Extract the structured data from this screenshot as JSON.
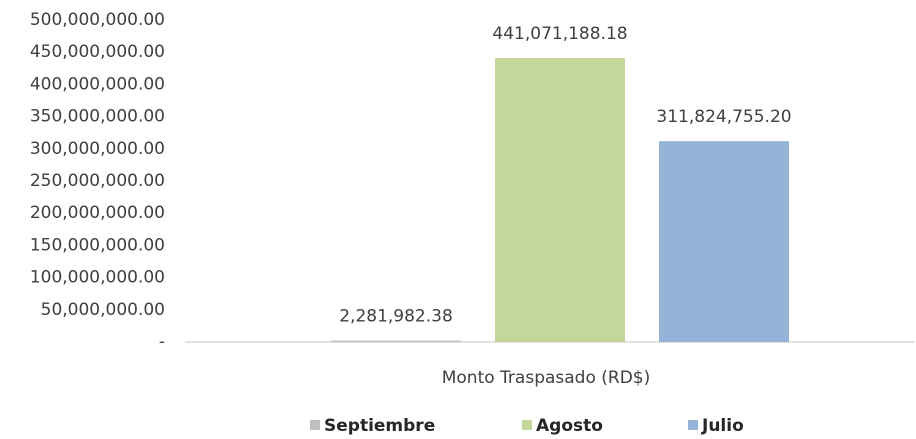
{
  "chart_data": {
    "type": "bar",
    "categories": [
      "Monto Traspasado (RD$)"
    ],
    "series": [
      {
        "name": "Septiembre",
        "color": "#bfbfbf",
        "values": [
          2281982.38
        ],
        "value_labels": [
          "2,281,982.38"
        ]
      },
      {
        "name": "Agosto",
        "color": "#c4d79b",
        "values": [
          441071188.18
        ],
        "value_labels": [
          "441,071,188.18"
        ]
      },
      {
        "name": "Julio",
        "color": "#95b3d7",
        "values": [
          311824755.2
        ],
        "value_labels": [
          "311,824,755.20"
        ]
      }
    ],
    "ylim": [
      0,
      500000000
    ],
    "yticks": [
      {
        "value": 0,
        "label": "-"
      },
      {
        "value": 50000000,
        "label": "50,000,000.00"
      },
      {
        "value": 100000000,
        "label": "100,000,000.00"
      },
      {
        "value": 150000000,
        "label": "150,000,000.00"
      },
      {
        "value": 200000000,
        "label": "200,000,000.00"
      },
      {
        "value": 250000000,
        "label": "250,000,000.00"
      },
      {
        "value": 300000000,
        "label": "300,000,000.00"
      },
      {
        "value": 350000000,
        "label": "350,000,000.00"
      },
      {
        "value": 400000000,
        "label": "400,000,000.00"
      },
      {
        "value": 450000000,
        "label": "450,000,000.00"
      },
      {
        "value": 500000000,
        "label": "500,000,000.00"
      }
    ],
    "grid": false,
    "legend": "bottom"
  }
}
